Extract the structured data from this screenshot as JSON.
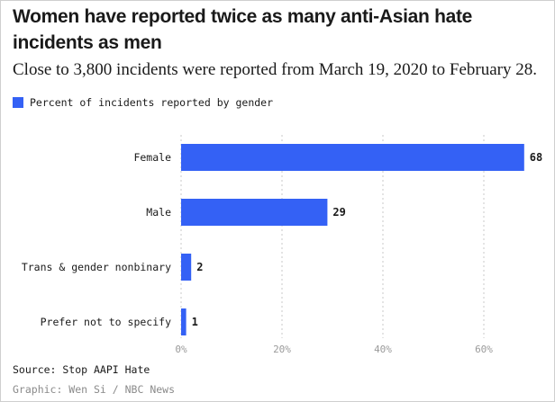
{
  "title": "Women have reported twice as many anti-Asian hate incidents as men",
  "subtitle": "Close to 3,800 incidents were reported from March 19, 2020 to February 28.",
  "legend": {
    "label": "Percent of incidents reported by gender",
    "color": "#3461f5"
  },
  "source": "Source: Stop AAPI Hate",
  "credit": "Graphic: Wen Si / NBC News",
  "chart_data": {
    "type": "bar",
    "orientation": "horizontal",
    "categories": [
      "Female",
      "Male",
      "Trans & gender nonbinary",
      "Prefer not to specify"
    ],
    "values": [
      68,
      29,
      2,
      1
    ],
    "value_labels": [
      "68",
      "29",
      "2",
      "1"
    ],
    "series": [
      {
        "name": "Percent of incidents reported by gender",
        "values": [
          68,
          29,
          2,
          1
        ]
      }
    ],
    "xlim": [
      0,
      70
    ],
    "xticks": [
      0,
      20,
      40,
      60
    ],
    "xtick_labels": [
      "0%",
      "20%",
      "40%",
      "60%"
    ],
    "grid": true,
    "bar_color": "#3461f5",
    "title": "Women have reported twice as many anti-Asian hate incidents as men",
    "xlabel": "",
    "ylabel": ""
  }
}
